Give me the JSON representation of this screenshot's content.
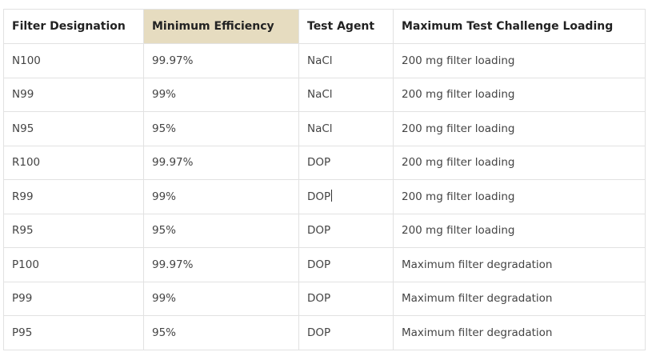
{
  "table": {
    "headers": [
      "Filter Designation",
      "Minimum Efficiency",
      "Test Agent",
      "Maximum Test Challenge Loading"
    ],
    "highlight_color": "#e6dcc0",
    "rows": [
      [
        "N100",
        "99.97%",
        "NaCl",
        "200 mg filter loading"
      ],
      [
        "N99",
        "99%",
        "NaCl",
        "200 mg filter loading"
      ],
      [
        "N95",
        "95%",
        "NaCl",
        "200 mg filter loading"
      ],
      [
        "R100",
        "99.97%",
        "DOP",
        "200 mg filter loading"
      ],
      [
        "R99",
        "99%",
        "DOP",
        "200 mg filter loading"
      ],
      [
        "R95",
        "95%",
        "DOP",
        "200 mg filter loading"
      ],
      [
        "P100",
        "99.97%",
        "DOP",
        "Maximum filter degradation"
      ],
      [
        "P99",
        "99%",
        "DOP",
        "Maximum filter degradation"
      ],
      [
        "P95",
        "95%",
        "DOP",
        "Maximum filter degradation"
      ]
    ]
  }
}
